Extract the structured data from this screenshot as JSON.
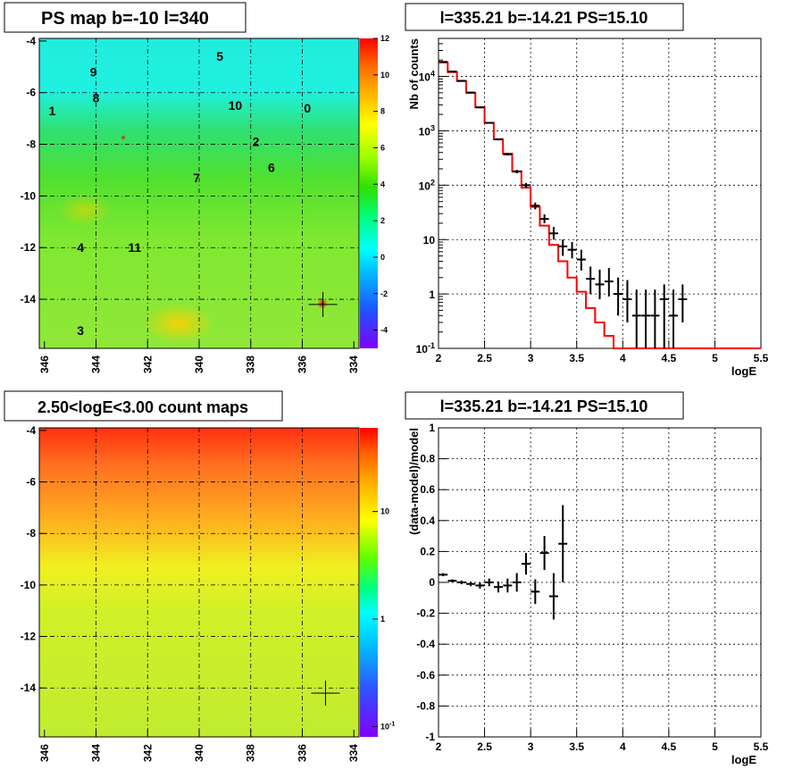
{
  "chart_data": [
    {
      "type": "heatmap",
      "title": "PS map b=-10 l=340",
      "x_ticks": [
        "346",
        "344",
        "342",
        "340",
        "338",
        "336",
        "334"
      ],
      "y_ticks": [
        "-4",
        "-6",
        "-8",
        "-10",
        "-12",
        "-14"
      ],
      "xlim": [
        346.2,
        333.8
      ],
      "ylim": [
        -15.9,
        -3.9
      ],
      "colorbar_ticks": [
        "12",
        "10",
        "8",
        "6",
        "4",
        "2",
        "0",
        "-2",
        "-4"
      ],
      "colorbar_range": [
        -5,
        12
      ],
      "sources": [
        {
          "label": "0",
          "l": 335.8,
          "b": -6.6
        },
        {
          "label": "1",
          "l": 345.7,
          "b": -6.7
        },
        {
          "label": "2",
          "l": 337.8,
          "b": -7.9
        },
        {
          "label": "3",
          "l": 344.6,
          "b": -15.2
        },
        {
          "label": "4",
          "l": 344.6,
          "b": -12.0
        },
        {
          "label": "5",
          "l": 339.2,
          "b": -4.6
        },
        {
          "label": "6",
          "l": 337.2,
          "b": -8.9
        },
        {
          "label": "7",
          "l": 340.1,
          "b": -9.3
        },
        {
          "label": "8",
          "l": 344.0,
          "b": -6.2
        },
        {
          "label": "9",
          "l": 344.1,
          "b": -5.2
        },
        {
          "label": "10",
          "l": 338.6,
          "b": -6.5
        },
        {
          "label": "11",
          "l": 342.5,
          "b": -12.0
        }
      ],
      "cross": {
        "l": 335.2,
        "b": -14.2
      }
    },
    {
      "type": "line",
      "title": "l=335.21 b=-14.21 PS=15.10",
      "xlabel": "logE",
      "ylabel": "Nb of counts",
      "yscale": "log",
      "xlim": [
        2,
        5.5
      ],
      "ylim": [
        0.1,
        50000
      ],
      "x_ticks": [
        "2",
        "2.5",
        "3",
        "3.5",
        "4",
        "4.5",
        "5",
        "5.5"
      ],
      "y_ticks": [
        {
          "v": 0.1,
          "t": "10",
          "sup": "-1"
        },
        {
          "v": 1,
          "t": "1",
          "sup": ""
        },
        {
          "v": 10,
          "t": "10",
          "sup": ""
        },
        {
          "v": 100,
          "t": "10",
          "sup": "2"
        },
        {
          "v": 1000,
          "t": "10",
          "sup": "3"
        },
        {
          "v": 10000,
          "t": "10",
          "sup": "4"
        }
      ],
      "model_color": "#ff0000",
      "model_edges": [
        2.0,
        2.1,
        2.2,
        2.3,
        2.4,
        2.5,
        2.6,
        2.7,
        2.8,
        2.9,
        3.0,
        3.1,
        3.2,
        3.3,
        3.4,
        3.5,
        3.6,
        3.7,
        3.8,
        3.9,
        4.0,
        4.1,
        4.2,
        4.3,
        4.4,
        4.5,
        4.6,
        4.7,
        4.8,
        4.9,
        5.0,
        5.1,
        5.2,
        5.3,
        5.4,
        5.5
      ],
      "model_values": [
        18000,
        12000,
        8200,
        5000,
        2700,
        1400,
        700,
        380,
        180,
        90,
        40,
        18,
        8,
        4,
        2,
        1.1,
        0.55,
        0.3,
        0.17,
        0.1,
        0.1,
        0.1,
        0.1,
        0.1,
        0.1,
        0.1,
        0.1,
        0.1,
        0.1,
        0.1,
        0.1,
        0.1,
        0.1,
        0.1,
        0.1
      ],
      "data_points": [
        {
          "x": 2.05,
          "y": 18500,
          "lo": 17900,
          "hi": 19100
        },
        {
          "x": 2.15,
          "y": 12300,
          "lo": 11900,
          "hi": 12700
        },
        {
          "x": 2.25,
          "y": 8300,
          "lo": 8000,
          "hi": 8600
        },
        {
          "x": 2.35,
          "y": 5050,
          "lo": 4900,
          "hi": 5200
        },
        {
          "x": 2.45,
          "y": 2700,
          "lo": 2600,
          "hi": 2800
        },
        {
          "x": 2.55,
          "y": 1400,
          "lo": 1360,
          "hi": 1440
        },
        {
          "x": 2.65,
          "y": 695,
          "lo": 670,
          "hi": 720
        },
        {
          "x": 2.75,
          "y": 370,
          "lo": 350,
          "hi": 390
        },
        {
          "x": 2.85,
          "y": 178,
          "lo": 165,
          "hi": 191
        },
        {
          "x": 2.95,
          "y": 100,
          "lo": 90,
          "hi": 110
        },
        {
          "x": 3.05,
          "y": 42,
          "lo": 36,
          "hi": 48
        },
        {
          "x": 3.15,
          "y": 24,
          "lo": 20,
          "hi": 29
        },
        {
          "x": 3.25,
          "y": 13,
          "lo": 10,
          "hi": 17
        },
        {
          "x": 3.35,
          "y": 7.5,
          "lo": 5,
          "hi": 10
        },
        {
          "x": 3.45,
          "y": 6.5,
          "lo": 4.5,
          "hi": 9
        },
        {
          "x": 3.55,
          "y": 4.3,
          "lo": 2.7,
          "hi": 6.5
        },
        {
          "x": 3.65,
          "y": 1.9,
          "lo": 1,
          "hi": 3.2
        },
        {
          "x": 3.75,
          "y": 1.5,
          "lo": 0.8,
          "hi": 2.8
        },
        {
          "x": 3.85,
          "y": 1.7,
          "lo": 0.9,
          "hi": 3
        },
        {
          "x": 3.95,
          "y": 1,
          "lo": 0.4,
          "hi": 2
        },
        {
          "x": 4.05,
          "y": 0.8,
          "lo": 0.3,
          "hi": 1.8
        },
        {
          "x": 4.15,
          "y": 0.4,
          "lo": 0.1,
          "hi": 1.2
        },
        {
          "x": 4.25,
          "y": 0.4,
          "lo": 0.1,
          "hi": 1.2
        },
        {
          "x": 4.35,
          "y": 0.4,
          "lo": 0.1,
          "hi": 1.2
        },
        {
          "x": 4.45,
          "y": 0.8,
          "lo": 0.1,
          "hi": 1.5
        },
        {
          "x": 4.55,
          "y": 0.4,
          "lo": 0.1,
          "hi": 1.2
        },
        {
          "x": 4.65,
          "y": 0.8,
          "lo": 0.3,
          "hi": 1.5
        }
      ]
    },
    {
      "type": "heatmap",
      "title": "2.50<logE<3.00 count maps",
      "x_ticks": [
        "346",
        "344",
        "342",
        "340",
        "338",
        "336",
        "334"
      ],
      "y_ticks": [
        "-4",
        "-6",
        "-8",
        "-10",
        "-12",
        "-14"
      ],
      "xlim": [
        346.2,
        333.8
      ],
      "ylim": [
        -15.9,
        -3.9
      ],
      "colorbar_ticks": [
        {
          "v": 10,
          "t": "10",
          "sup": ""
        },
        {
          "v": 1,
          "t": "1",
          "sup": ""
        },
        {
          "v": 0.1,
          "t": "10",
          "sup": "-1"
        }
      ],
      "colorbar_range": [
        0.08,
        60
      ],
      "cross": {
        "l": 335.1,
        "b": -14.2
      }
    },
    {
      "type": "scatter",
      "title": "l=335.21 b=-14.21 PS=15.10",
      "xlabel": "logE",
      "ylabel": "(data-model)/model",
      "xlim": [
        2,
        5.5
      ],
      "ylim": [
        -1,
        1
      ],
      "x_ticks": [
        "2",
        "2.5",
        "3",
        "3.5",
        "4",
        "4.5",
        "5",
        "5.5"
      ],
      "y_ticks": [
        "1",
        "0.8",
        "0.6",
        "0.4",
        "0.2",
        "0",
        "-0.2",
        "-0.4",
        "-0.6",
        "-0.8",
        "-1"
      ],
      "points": [
        {
          "x": 2.05,
          "y": 0.05,
          "err": 0.01
        },
        {
          "x": 2.15,
          "y": 0.01,
          "err": 0.01
        },
        {
          "x": 2.25,
          "y": 0.0,
          "err": 0.012
        },
        {
          "x": 2.35,
          "y": -0.01,
          "err": 0.015
        },
        {
          "x": 2.45,
          "y": -0.02,
          "err": 0.02
        },
        {
          "x": 2.55,
          "y": 0.0,
          "err": 0.025
        },
        {
          "x": 2.65,
          "y": -0.03,
          "err": 0.035
        },
        {
          "x": 2.75,
          "y": -0.02,
          "err": 0.045
        },
        {
          "x": 2.85,
          "y": 0.0,
          "err": 0.06
        },
        {
          "x": 2.95,
          "y": 0.12,
          "err": 0.07
        },
        {
          "x": 3.05,
          "y": -0.06,
          "err": 0.08
        },
        {
          "x": 3.15,
          "y": 0.19,
          "err": 0.11
        },
        {
          "x": 3.25,
          "y": -0.09,
          "err": 0.15
        },
        {
          "x": 3.35,
          "y": 0.25,
          "err": 0.25
        }
      ]
    }
  ]
}
